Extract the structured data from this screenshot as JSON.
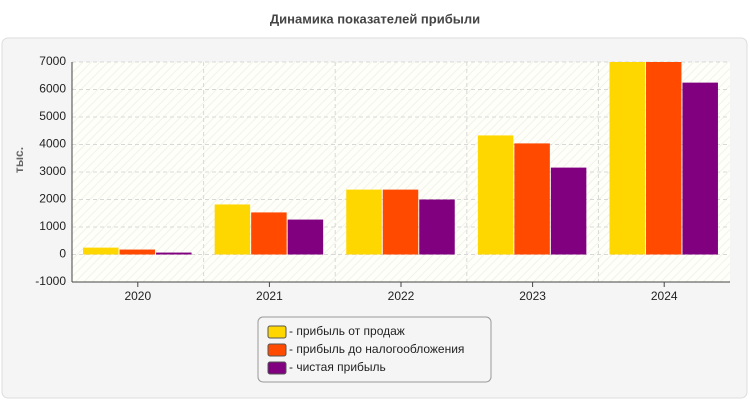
{
  "chart_data": {
    "type": "bar",
    "title": "Динамика показателей прибыли",
    "y_label": "тыс.",
    "categories": [
      "2020",
      "2021",
      "2022",
      "2023",
      "2024"
    ],
    "series": [
      {
        "name": "- прибыль от продаж",
        "color": "#ffd700",
        "values": [
          250,
          1820,
          2360,
          4330,
          7000
        ]
      },
      {
        "name": "- прибыль до налогообложения",
        "color": "#ff4a00",
        "values": [
          180,
          1530,
          2360,
          4040,
          7000
        ]
      },
      {
        "name": "- чистая прибыль",
        "color": "#800080",
        "values": [
          70,
          1270,
          2000,
          3160,
          6250
        ]
      }
    ],
    "ylim": [
      -1000,
      7000
    ],
    "yticks": [
      -1000,
      0,
      1000,
      2000,
      3000,
      4000,
      5000,
      6000,
      7000
    ],
    "grid": true
  }
}
